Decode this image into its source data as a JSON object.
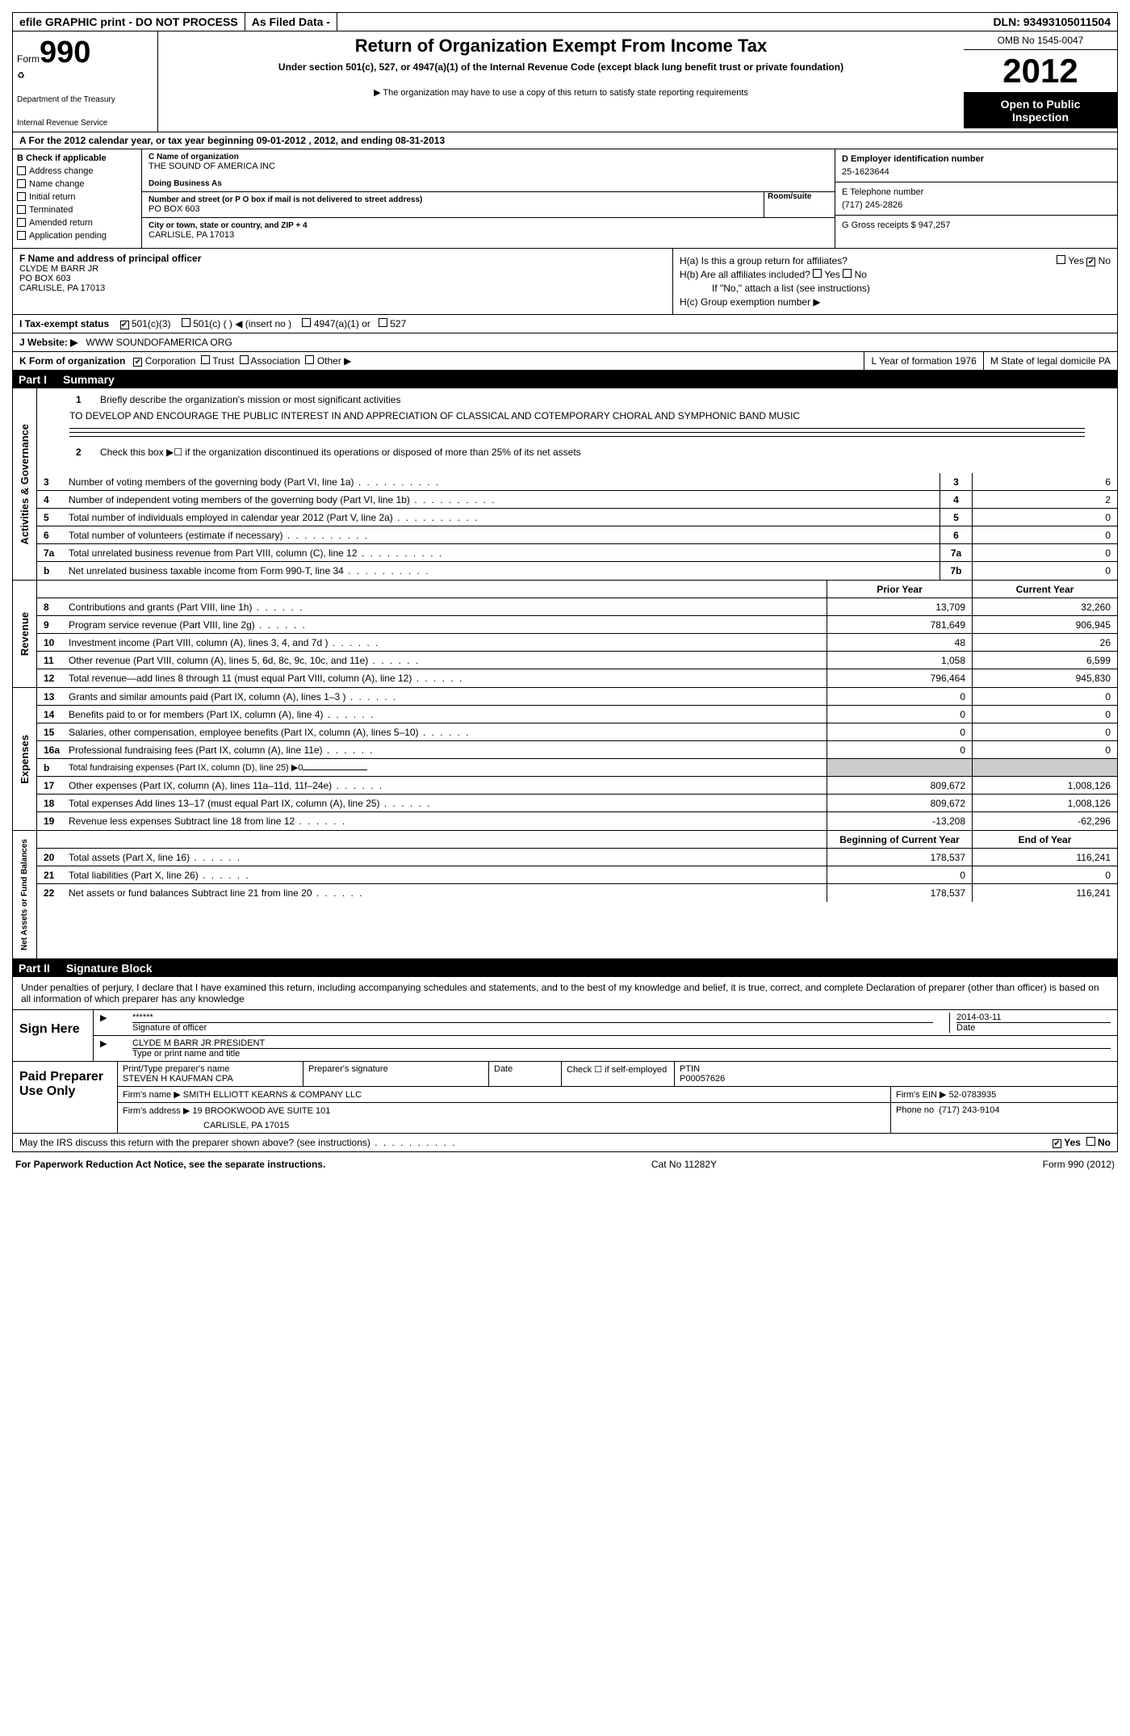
{
  "topbar": {
    "efile": "efile GRAPHIC print - DO NOT PROCESS",
    "asfiled": "As Filed Data -",
    "dln": "DLN: 93493105011504"
  },
  "header": {
    "form_label": "Form",
    "form_num": "990",
    "dept1": "Department of the Treasury",
    "dept2": "Internal Revenue Service",
    "title": "Return of Organization Exempt From Income Tax",
    "subtitle": "Under section 501(c), 527, or 4947(a)(1) of the Internal Revenue Code (except black lung benefit trust or private foundation)",
    "note": "▶ The organization may have to use a copy of this return to satisfy state reporting requirements",
    "omb": "OMB No 1545-0047",
    "year": "2012",
    "public1": "Open to Public",
    "public2": "Inspection"
  },
  "row_a": "A For the 2012 calendar year, or tax year beginning 09-01-2012    , 2012, and ending 08-31-2013",
  "section_b": {
    "label": "B Check if applicable",
    "items": [
      "Address change",
      "Name change",
      "Initial return",
      "Terminated",
      "Amended return",
      "Application pending"
    ]
  },
  "section_c": {
    "name_label": "C Name of organization",
    "name": "THE SOUND OF AMERICA INC",
    "dba_label": "Doing Business As",
    "dba": "",
    "street_label": "Number and street (or P O  box if mail is not delivered to street address)",
    "room_label": "Room/suite",
    "street": "PO BOX 603",
    "city_label": "City or town, state or country, and ZIP + 4",
    "city": "CARLISLE, PA  17013"
  },
  "section_d": {
    "label": "D Employer identification number",
    "value": "25-1623644"
  },
  "section_e": {
    "label": "E Telephone number",
    "value": "(717) 245-2826"
  },
  "section_g": {
    "label": "G Gross receipts $ 947,257"
  },
  "section_f": {
    "label": "F  Name and address of principal officer",
    "name": "CLYDE M BARR JR",
    "street": "PO BOX 603",
    "city": "CARLISLE, PA  17013"
  },
  "section_h": {
    "ha": "H(a)  Is this a group return for affiliates?",
    "hb": "H(b)  Are all affiliates included?",
    "hb_note": "If \"No,\" attach a list  (see instructions)",
    "hc": "H(c)   Group exemption number ▶",
    "yes": "Yes",
    "no": "No"
  },
  "row_i": {
    "label": "I   Tax-exempt status",
    "opts": [
      "501(c)(3)",
      "501(c) (  ) ◀ (insert no )",
      "4947(a)(1) or",
      "527"
    ]
  },
  "row_j": {
    "label": "J  Website: ▶",
    "value": "WWW SOUNDOFAMERICA ORG"
  },
  "row_k": {
    "label": "K Form of organization",
    "opts": [
      "Corporation",
      "Trust",
      "Association",
      "Other ▶"
    ],
    "l_label": "L Year of formation  1976",
    "m_label": "M State of legal domicile  PA"
  },
  "part1": {
    "num": "Part I",
    "title": "Summary"
  },
  "summary": {
    "line1_label": "1",
    "line1_text": "Briefly describe the organization's mission or most significant activities",
    "mission": "TO DEVELOP AND ENCOURAGE THE PUBLIC INTEREST IN AND APPRECIATION OF CLASSICAL AND COTEMPORARY CHORAL AND SYMPHONIC BAND MUSIC",
    "line2_label": "2",
    "line2_text": "Check this box ▶☐ if the organization discontinued its operations or disposed of more than 25% of its net assets"
  },
  "gov_label": "Activities & Governance",
  "gov_rows": [
    {
      "n": "3",
      "d": "Number of voting members of the governing body (Part VI, line 1a)",
      "c1": "3",
      "v": "6"
    },
    {
      "n": "4",
      "d": "Number of independent voting members of the governing body (Part VI, line 1b)",
      "c1": "4",
      "v": "2"
    },
    {
      "n": "5",
      "d": "Total number of individuals employed in calendar year 2012 (Part V, line 2a)",
      "c1": "5",
      "v": "0"
    },
    {
      "n": "6",
      "d": "Total number of volunteers (estimate if necessary)",
      "c1": "6",
      "v": "0"
    },
    {
      "n": "7a",
      "d": "Total unrelated business revenue from Part VIII, column (C), line 12",
      "c1": "7a",
      "v": "0"
    },
    {
      "n": "b",
      "d": "Net unrelated business taxable income from Form 990-T, line 34",
      "c1": "7b",
      "v": "0"
    }
  ],
  "rev_label": "Revenue",
  "col_hdrs": {
    "prior": "Prior Year",
    "current": "Current Year"
  },
  "rev_rows": [
    {
      "n": "8",
      "d": "Contributions and grants (Part VIII, line 1h)",
      "p": "13,709",
      "c": "32,260"
    },
    {
      "n": "9",
      "d": "Program service revenue (Part VIII, line 2g)",
      "p": "781,649",
      "c": "906,945"
    },
    {
      "n": "10",
      "d": "Investment income (Part VIII, column (A), lines 3, 4, and 7d )",
      "p": "48",
      "c": "26"
    },
    {
      "n": "11",
      "d": "Other revenue (Part VIII, column (A), lines 5, 6d, 8c, 9c, 10c, and 11e)",
      "p": "1,058",
      "c": "6,599"
    },
    {
      "n": "12",
      "d": "Total revenue—add lines 8 through 11 (must equal Part VIII, column (A), line 12)",
      "p": "796,464",
      "c": "945,830"
    }
  ],
  "exp_label": "Expenses",
  "exp_rows": [
    {
      "n": "13",
      "d": "Grants and similar amounts paid (Part IX, column (A), lines 1–3 )",
      "p": "0",
      "c": "0"
    },
    {
      "n": "14",
      "d": "Benefits paid to or for members (Part IX, column (A), line 4)",
      "p": "0",
      "c": "0"
    },
    {
      "n": "15",
      "d": "Salaries, other compensation, employee benefits (Part IX, column (A), lines 5–10)",
      "p": "0",
      "c": "0"
    },
    {
      "n": "16a",
      "d": "Professional fundraising fees (Part IX, column (A), line 11e)",
      "p": "0",
      "c": "0"
    },
    {
      "n": "b",
      "d": "Total fundraising expenses (Part IX, column (D), line 25) ▶0",
      "p": "",
      "c": "",
      "gray": true
    },
    {
      "n": "17",
      "d": "Other expenses (Part IX, column (A), lines 11a–11d, 11f–24e)",
      "p": "809,672",
      "c": "1,008,126"
    },
    {
      "n": "18",
      "d": "Total expenses  Add lines 13–17 (must equal Part IX, column (A), line 25)",
      "p": "809,672",
      "c": "1,008,126"
    },
    {
      "n": "19",
      "d": "Revenue less expenses  Subtract line 18 from line 12",
      "p": "-13,208",
      "c": "-62,296"
    }
  ],
  "na_label": "Net Assets or Fund Balances",
  "na_hdrs": {
    "begin": "Beginning of Current Year",
    "end": "End of Year"
  },
  "na_rows": [
    {
      "n": "20",
      "d": "Total assets (Part X, line 16)",
      "p": "178,537",
      "c": "116,241"
    },
    {
      "n": "21",
      "d": "Total liabilities (Part X, line 26)",
      "p": "0",
      "c": "0"
    },
    {
      "n": "22",
      "d": "Net assets or fund balances  Subtract line 21 from line 20",
      "p": "178,537",
      "c": "116,241"
    }
  ],
  "part2": {
    "num": "Part II",
    "title": "Signature Block"
  },
  "sig_text": "Under penalties of perjury, I declare that I have examined this return, including accompanying schedules and statements, and to the best of my knowledge and belief, it is true, correct, and complete  Declaration of preparer (other than officer) is based on all information of which preparer has any knowledge",
  "sign": {
    "label": "Sign Here",
    "stars": "******",
    "sig_label": "Signature of officer",
    "date": "2014-03-11",
    "date_label": "Date",
    "name": "CLYDE M BARR JR PRESIDENT",
    "name_label": "Type or print name and title"
  },
  "prep": {
    "label": "Paid Preparer Use Only",
    "name_label": "Print/Type preparer's name",
    "name": "STEVEN H KAUFMAN CPA",
    "sig_label": "Preparer's signature",
    "date_label": "Date",
    "check_label": "Check ☐ if self-employed",
    "ptin_label": "PTIN",
    "ptin": "P00057626",
    "firm_label": "Firm's name   ▶",
    "firm": "SMITH ELLIOTT KEARNS & COMPANY LLC",
    "ein_label": "Firm's EIN ▶",
    "ein": "52-0783935",
    "addr_label": "Firm's address ▶",
    "addr1": "19 BROOKWOOD AVE SUITE 101",
    "addr2": "CARLISLE, PA  17015",
    "phone_label": "Phone no",
    "phone": "(717) 243-9104"
  },
  "discuss": {
    "text": "May the IRS discuss this return with the preparer shown above? (see instructions)",
    "yes": "Yes",
    "no": "No"
  },
  "footer": {
    "left": "For Paperwork Reduction Act Notice, see the separate instructions.",
    "mid": "Cat No  11282Y",
    "right": "Form 990 (2012)"
  }
}
